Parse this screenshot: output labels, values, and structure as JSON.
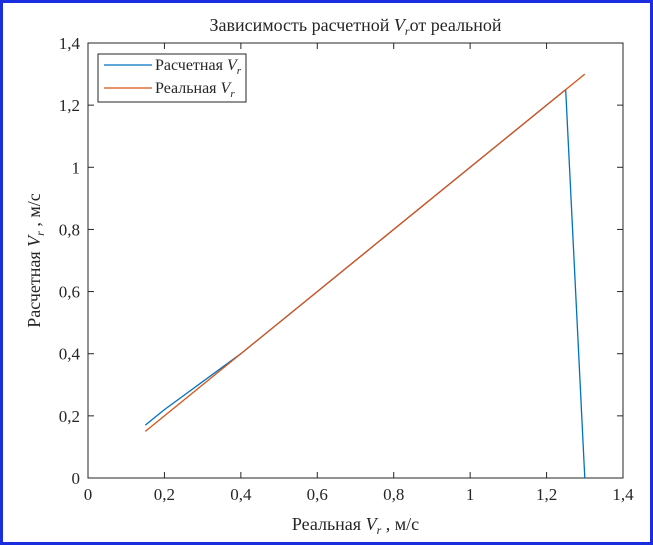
{
  "chart_data": {
    "type": "line",
    "title": {
      "prefix": "Зависимость расчетной ",
      "var": "V",
      "sub": "r",
      "suffix": "от реальной"
    },
    "xlabel": {
      "prefix": "Реальная ",
      "var": "V",
      "sub": "r",
      "suffix": " , м/с"
    },
    "ylabel": {
      "prefix": "Расчетная ",
      "var": "V",
      "sub": "r",
      "suffix": " , м/с"
    },
    "xlim": [
      0,
      1.4
    ],
    "ylim": [
      0,
      1.4
    ],
    "xticks": [
      0,
      0.2,
      0.4,
      0.6,
      0.8,
      1,
      1.2,
      1.4
    ],
    "yticks": [
      0,
      0.2,
      0.4,
      0.6,
      0.8,
      1,
      1.2,
      1.4
    ],
    "xtick_labels": [
      "0",
      "0,2",
      "0,4",
      "0,6",
      "0,8",
      "1",
      "1,2",
      "1,4"
    ],
    "ytick_labels": [
      "0",
      "0,2",
      "0,4",
      "0,6",
      "0,8",
      "1",
      "1,2",
      "1,4"
    ],
    "grid": false,
    "legend_placement": "top-left",
    "series": [
      {
        "name": {
          "prefix": "Расчетная ",
          "var": "V",
          "sub": "r"
        },
        "color": "#0072BD",
        "x": [
          0.15,
          0.2,
          0.25,
          0.3,
          0.35,
          0.4,
          0.6,
          0.8,
          1.0,
          1.2,
          1.25,
          1.3
        ],
        "y": [
          0.17,
          0.22,
          0.265,
          0.31,
          0.355,
          0.4,
          0.6,
          0.8,
          1.0,
          1.2,
          1.25,
          0.0
        ]
      },
      {
        "name": {
          "prefix": "Реальная ",
          "var": "V",
          "sub": "r"
        },
        "color": "#D95319",
        "x": [
          0.15,
          1.3
        ],
        "y": [
          0.15,
          1.3
        ]
      }
    ]
  }
}
